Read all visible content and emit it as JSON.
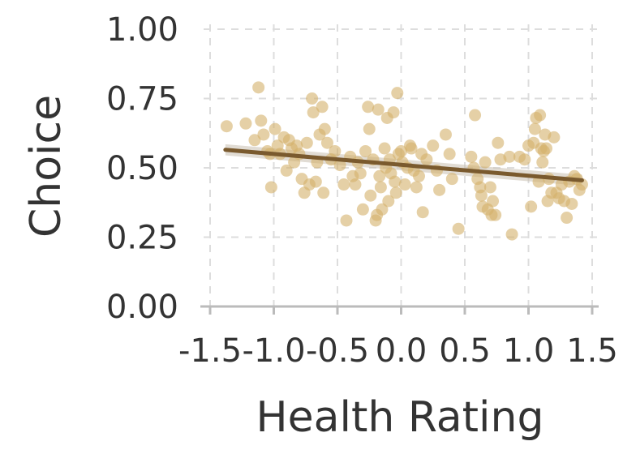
{
  "chart_data": {
    "type": "scatter",
    "xlabel": "Health Rating",
    "ylabel": "Choice",
    "xlim": [
      -1.5,
      1.5
    ],
    "ylim": [
      0,
      1
    ],
    "xticks": [
      -1.5,
      -1.0,
      -0.5,
      0.0,
      0.5,
      1.0,
      1.5
    ],
    "xtick_labels": [
      "-1.5",
      "-1.0",
      "-0.5",
      "0.0",
      "0.5",
      "1.0",
      "1.5"
    ],
    "yticks": [
      0,
      0.25,
      0.5,
      0.75,
      1.0
    ],
    "ytick_labels": [
      "0.00",
      "0.25",
      "0.50",
      "0.75",
      "1.00"
    ],
    "grid": true,
    "colors": {
      "points": "#d4b06a",
      "trend": "#7a5a2e",
      "band": "#c9c0b0"
    },
    "points": [
      {
        "x": -1.37,
        "y": 0.65
      },
      {
        "x": -1.22,
        "y": 0.66
      },
      {
        "x": -1.15,
        "y": 0.6
      },
      {
        "x": -1.12,
        "y": 0.79
      },
      {
        "x": -1.1,
        "y": 0.67
      },
      {
        "x": -1.08,
        "y": 0.62
      },
      {
        "x": -1.05,
        "y": 0.56
      },
      {
        "x": -1.03,
        "y": 0.55
      },
      {
        "x": -1.02,
        "y": 0.43
      },
      {
        "x": -0.99,
        "y": 0.64
      },
      {
        "x": -0.97,
        "y": 0.58
      },
      {
        "x": -0.95,
        "y": 0.55
      },
      {
        "x": -0.92,
        "y": 0.61
      },
      {
        "x": -0.9,
        "y": 0.49
      },
      {
        "x": -0.88,
        "y": 0.6
      },
      {
        "x": -0.86,
        "y": 0.57
      },
      {
        "x": -0.84,
        "y": 0.52
      },
      {
        "x": -0.82,
        "y": 0.58
      },
      {
        "x": -0.8,
        "y": 0.55
      },
      {
        "x": -0.78,
        "y": 0.46
      },
      {
        "x": -0.76,
        "y": 0.41
      },
      {
        "x": -0.74,
        "y": 0.59
      },
      {
        "x": -0.72,
        "y": 0.44
      },
      {
        "x": -0.7,
        "y": 0.75
      },
      {
        "x": -0.69,
        "y": 0.7
      },
      {
        "x": -0.67,
        "y": 0.45
      },
      {
        "x": -0.66,
        "y": 0.52
      },
      {
        "x": -0.64,
        "y": 0.62
      },
      {
        "x": -0.62,
        "y": 0.72
      },
      {
        "x": -0.61,
        "y": 0.41
      },
      {
        "x": -0.6,
        "y": 0.64
      },
      {
        "x": -0.58,
        "y": 0.59
      },
      {
        "x": -0.55,
        "y": 0.53
      },
      {
        "x": -0.52,
        "y": 0.56
      },
      {
        "x": -0.48,
        "y": 0.51
      },
      {
        "x": -0.45,
        "y": 0.44
      },
      {
        "x": -0.43,
        "y": 0.31
      },
      {
        "x": -0.4,
        "y": 0.54
      },
      {
        "x": -0.38,
        "y": 0.47
      },
      {
        "x": -0.36,
        "y": 0.44
      },
      {
        "x": -0.34,
        "y": 0.52
      },
      {
        "x": -0.32,
        "y": 0.48
      },
      {
        "x": -0.3,
        "y": 0.35
      },
      {
        "x": -0.28,
        "y": 0.56
      },
      {
        "x": -0.26,
        "y": 0.72
      },
      {
        "x": -0.25,
        "y": 0.64
      },
      {
        "x": -0.24,
        "y": 0.4
      },
      {
        "x": -0.22,
        "y": 0.53
      },
      {
        "x": -0.2,
        "y": 0.31
      },
      {
        "x": -0.19,
        "y": 0.33
      },
      {
        "x": -0.18,
        "y": 0.71
      },
      {
        "x": -0.17,
        "y": 0.47
      },
      {
        "x": -0.16,
        "y": 0.43
      },
      {
        "x": -0.15,
        "y": 0.35
      },
      {
        "x": -0.13,
        "y": 0.57
      },
      {
        "x": -0.12,
        "y": 0.5
      },
      {
        "x": -0.11,
        "y": 0.68
      },
      {
        "x": -0.1,
        "y": 0.38
      },
      {
        "x": -0.09,
        "y": 0.53
      },
      {
        "x": -0.08,
        "y": 0.48
      },
      {
        "x": -0.06,
        "y": 0.7
      },
      {
        "x": -0.05,
        "y": 0.45
      },
      {
        "x": -0.04,
        "y": 0.41
      },
      {
        "x": -0.03,
        "y": 0.77
      },
      {
        "x": -0.02,
        "y": 0.55
      },
      {
        "x": 0.0,
        "y": 0.56
      },
      {
        "x": 0.01,
        "y": 0.52
      },
      {
        "x": 0.03,
        "y": 0.44
      },
      {
        "x": 0.05,
        "y": 0.5
      },
      {
        "x": 0.07,
        "y": 0.58
      },
      {
        "x": 0.08,
        "y": 0.57
      },
      {
        "x": 0.1,
        "y": 0.49
      },
      {
        "x": 0.12,
        "y": 0.43
      },
      {
        "x": 0.14,
        "y": 0.47
      },
      {
        "x": 0.16,
        "y": 0.55
      },
      {
        "x": 0.17,
        "y": 0.34
      },
      {
        "x": 0.2,
        "y": 0.53
      },
      {
        "x": 0.25,
        "y": 0.58
      },
      {
        "x": 0.28,
        "y": 0.49
      },
      {
        "x": 0.3,
        "y": 0.42
      },
      {
        "x": 0.35,
        "y": 0.62
      },
      {
        "x": 0.38,
        "y": 0.55
      },
      {
        "x": 0.4,
        "y": 0.46
      },
      {
        "x": 0.45,
        "y": 0.28
      },
      {
        "x": 0.55,
        "y": 0.54
      },
      {
        "x": 0.57,
        "y": 0.5
      },
      {
        "x": 0.58,
        "y": 0.69
      },
      {
        "x": 0.6,
        "y": 0.46
      },
      {
        "x": 0.62,
        "y": 0.43
      },
      {
        "x": 0.63,
        "y": 0.4
      },
      {
        "x": 0.64,
        "y": 0.36
      },
      {
        "x": 0.66,
        "y": 0.52
      },
      {
        "x": 0.68,
        "y": 0.35
      },
      {
        "x": 0.7,
        "y": 0.43
      },
      {
        "x": 0.71,
        "y": 0.33
      },
      {
        "x": 0.72,
        "y": 0.38
      },
      {
        "x": 0.74,
        "y": 0.33
      },
      {
        "x": 0.76,
        "y": 0.59
      },
      {
        "x": 0.78,
        "y": 0.53
      },
      {
        "x": 0.85,
        "y": 0.54
      },
      {
        "x": 0.87,
        "y": 0.26
      },
      {
        "x": 0.93,
        "y": 0.54
      },
      {
        "x": 0.97,
        "y": 0.53
      },
      {
        "x": 1.0,
        "y": 0.58
      },
      {
        "x": 1.02,
        "y": 0.36
      },
      {
        "x": 1.04,
        "y": 0.59
      },
      {
        "x": 1.05,
        "y": 0.64
      },
      {
        "x": 1.06,
        "y": 0.68
      },
      {
        "x": 1.08,
        "y": 0.45
      },
      {
        "x": 1.09,
        "y": 0.69
      },
      {
        "x": 1.1,
        "y": 0.57
      },
      {
        "x": 1.11,
        "y": 0.52
      },
      {
        "x": 1.12,
        "y": 0.56
      },
      {
        "x": 1.13,
        "y": 0.62
      },
      {
        "x": 1.14,
        "y": 0.57
      },
      {
        "x": 1.15,
        "y": 0.38
      },
      {
        "x": 1.16,
        "y": 0.46
      },
      {
        "x": 1.18,
        "y": 0.41
      },
      {
        "x": 1.2,
        "y": 0.61
      },
      {
        "x": 1.22,
        "y": 0.41
      },
      {
        "x": 1.24,
        "y": 0.39
      },
      {
        "x": 1.26,
        "y": 0.44
      },
      {
        "x": 1.28,
        "y": 0.38
      },
      {
        "x": 1.3,
        "y": 0.32
      },
      {
        "x": 1.32,
        "y": 0.45
      },
      {
        "x": 1.34,
        "y": 0.37
      },
      {
        "x": 1.36,
        "y": 0.47
      },
      {
        "x": 1.38,
        "y": 0.46
      },
      {
        "x": 1.4,
        "y": 0.42
      },
      {
        "x": 1.42,
        "y": 0.44
      }
    ],
    "trend": {
      "x": [
        -1.38,
        1.42
      ],
      "y": [
        0.565,
        0.455
      ],
      "ci_upper": [
        0.585,
        0.475
      ],
      "ci_lower": [
        0.545,
        0.435
      ]
    }
  }
}
